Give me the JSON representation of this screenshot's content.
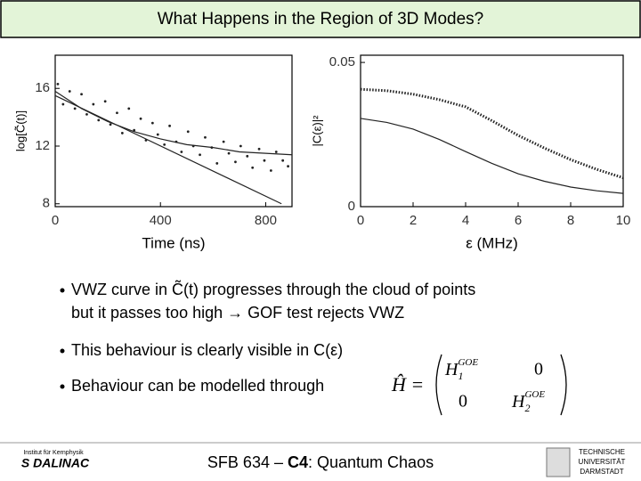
{
  "title": "What Happens in the Region of 3D Modes?",
  "chart_data": [
    {
      "type": "scatter",
      "xlabel": "Time (ns)",
      "ylabel": "log[C̃(t)]",
      "xlim": [
        0,
        900
      ],
      "ylim": [
        7.8,
        18.3
      ],
      "xticks": [
        0,
        400,
        800
      ],
      "yticks": [
        8,
        12,
        16
      ],
      "series": [
        {
          "type": "scatter",
          "color": "#222222",
          "x": [
            10,
            30,
            55,
            75,
            100,
            120,
            145,
            165,
            190,
            210,
            235,
            255,
            280,
            300,
            325,
            345,
            370,
            390,
            415,
            435,
            460,
            480,
            505,
            525,
            550,
            570,
            595,
            615,
            640,
            660,
            685,
            705,
            730,
            750,
            775,
            795,
            820,
            840,
            865,
            885
          ],
          "values": [
            16.3,
            14.9,
            15.8,
            14.6,
            15.6,
            14.2,
            14.9,
            13.8,
            15.1,
            13.5,
            14.3,
            12.9,
            14.6,
            13.1,
            13.9,
            12.4,
            13.6,
            12.8,
            12.1,
            13.4,
            12.3,
            11.6,
            13.0,
            12.0,
            11.4,
            12.6,
            11.9,
            10.8,
            12.3,
            11.5,
            10.9,
            12.0,
            11.3,
            10.5,
            11.8,
            11.0,
            10.3,
            11.6,
            11.0,
            10.6
          ]
        },
        {
          "type": "line",
          "color": "#222222",
          "x": [
            0,
            100,
            200,
            300,
            400,
            500,
            600,
            700,
            800,
            900
          ],
          "values": [
            15.8,
            14.6,
            13.7,
            13.0,
            12.5,
            12.1,
            11.9,
            11.6,
            11.5,
            11.4
          ]
        },
        {
          "type": "line",
          "color": "#222222",
          "x": [
            0,
            860
          ],
          "values": [
            15.5,
            8
          ]
        }
      ]
    },
    {
      "type": "line",
      "xlabel": "ε (MHz)",
      "ylabel": "|C(ε)|²",
      "xlim": [
        0,
        10
      ],
      "ylim": [
        0,
        0.0525
      ],
      "xticks": [
        0,
        2,
        4,
        6,
        8,
        10
      ],
      "yticks": [
        0,
        0.05
      ],
      "series": [
        {
          "color": "#222222",
          "style": "dotted",
          "x": [
            0,
            1,
            2,
            3,
            4,
            5,
            6,
            7,
            8,
            9,
            10
          ],
          "values": [
            0.0407,
            0.0402,
            0.039,
            0.0371,
            0.0346,
            0.0298,
            0.0247,
            0.0203,
            0.0163,
            0.0129,
            0.01
          ]
        },
        {
          "color": "#222222",
          "style": "solid",
          "x": [
            0,
            1,
            2,
            3,
            4,
            5,
            6,
            7,
            8,
            9,
            10
          ],
          "values": [
            0.0306,
            0.0292,
            0.0269,
            0.0233,
            0.0191,
            0.015,
            0.0114,
            0.0088,
            0.0068,
            0.0055,
            0.0046
          ]
        }
      ]
    }
  ],
  "bullets": [
    {
      "lines": [
        "VWZ curve in C̃(t) progresses through the cloud of points",
        "but it passes too high → GOF test rejects VWZ"
      ]
    },
    {
      "lines": [
        "This behaviour is clearly visible in C(ε)"
      ]
    },
    {
      "lines": [
        "Behaviour can be modelled through"
      ]
    }
  ],
  "formula": {
    "lhs": "Ĥ =",
    "h1": {
      "symbol": "H",
      "sub": "1",
      "sup": "GOE"
    },
    "h2": {
      "symbol": "H",
      "sub": "2",
      "sup": "GOE"
    },
    "zero": "0"
  },
  "footer": {
    "prefix": "SFB 634 – ",
    "bold": "C4",
    "suffix": ": Quantum Chaos",
    "left_logo": "S DALINAC",
    "left_logo_sub": "Institut für Kernphysik",
    "right_logo": [
      "TECHNISCHE",
      "UNIVERSITÄT",
      "DARMSTADT"
    ]
  }
}
